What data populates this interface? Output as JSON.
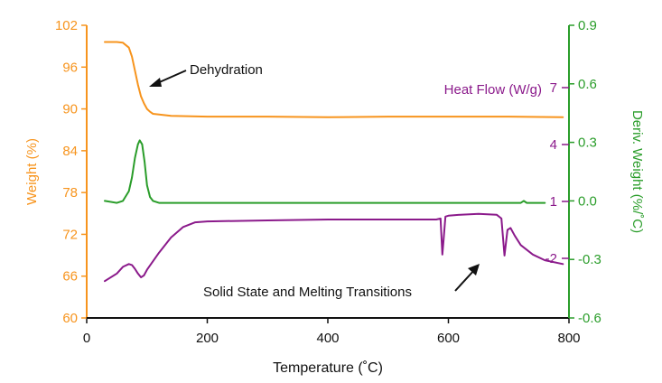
{
  "chart_data": {
    "type": "line",
    "xlabel": "Temperature (˚C)",
    "xlim": [
      0,
      800
    ],
    "xticks": [
      "0",
      "200",
      "400",
      "600",
      "800"
    ],
    "axes": {
      "left": {
        "label": "Weight (%)",
        "min": 60,
        "max": 102,
        "ticks": [
          "60",
          "66",
          "72",
          "78",
          "84",
          "90",
          "96",
          "102"
        ],
        "color": "#f7941d"
      },
      "right": {
        "label": "Deriv. Weight (%/˚C)",
        "min": -0.6,
        "max": 0.9,
        "ticks": [
          "-0.6",
          "-0.3",
          "0.0",
          "0.3",
          "0.6",
          "0.9"
        ],
        "color": "#2a9d2a"
      },
      "heat_flow": {
        "label": "Heat Flow (W/g)",
        "ticks": [
          "7",
          "4",
          "1",
          "-2"
        ],
        "color": "#8b1a8b"
      }
    },
    "series": [
      {
        "name": "Weight (%)",
        "axis": "left",
        "color": "#f7941d",
        "x": [
          30,
          50,
          60,
          70,
          75,
          80,
          85,
          90,
          95,
          100,
          105,
          110,
          120,
          140,
          200,
          300,
          400,
          500,
          600,
          700,
          790
        ],
        "y": [
          99.6,
          99.6,
          99.5,
          98.8,
          97.5,
          95.5,
          93.5,
          91.8,
          90.8,
          90.0,
          89.6,
          89.3,
          89.2,
          89.0,
          88.9,
          88.9,
          88.8,
          88.9,
          88.9,
          88.9,
          88.8
        ]
      },
      {
        "name": "Deriv. Weight (%/˚C)",
        "axis": "right",
        "color": "#2a9d2a",
        "x": [
          30,
          50,
          60,
          70,
          75,
          80,
          85,
          88,
          92,
          96,
          100,
          105,
          110,
          120,
          200,
          400,
          600,
          700,
          720,
          725,
          730,
          740,
          760
        ],
        "y": [
          0.0,
          -0.01,
          0.0,
          0.05,
          0.12,
          0.22,
          0.29,
          0.31,
          0.29,
          0.2,
          0.08,
          0.02,
          0.0,
          -0.01,
          -0.01,
          -0.01,
          -0.01,
          -0.01,
          -0.01,
          0.0,
          -0.01,
          -0.01,
          -0.01
        ]
      },
      {
        "name": "Heat Flow (W/g)",
        "axis": "heat_flow",
        "color": "#8b1a8b",
        "x": [
          30,
          50,
          60,
          70,
          75,
          80,
          85,
          90,
          95,
          100,
          120,
          140,
          160,
          180,
          200,
          300,
          400,
          500,
          580,
          587,
          590,
          592,
          595,
          600,
          620,
          650,
          680,
          688,
          693,
          698,
          703,
          710,
          720,
          740,
          760,
          790
        ],
        "y": [
          -3.2,
          -2.8,
          -2.45,
          -2.3,
          -2.35,
          -2.55,
          -2.8,
          -3.0,
          -2.9,
          -2.6,
          -1.7,
          -0.9,
          -0.35,
          -0.1,
          -0.05,
          0.0,
          0.05,
          0.05,
          0.05,
          0.1,
          -1.8,
          -1.0,
          0.2,
          0.25,
          0.3,
          0.35,
          0.3,
          0.1,
          -1.85,
          -0.5,
          -0.4,
          -0.8,
          -1.3,
          -1.8,
          -2.1,
          -2.3
        ]
      }
    ],
    "annotations": [
      {
        "text": "Dehydration",
        "points_to": {
          "x": 105,
          "y": 94.5,
          "axis": "left"
        }
      },
      {
        "text": "Solid State and Melting Transitions",
        "points_to": {
          "x": 650,
          "y": 65.0,
          "axis": "left"
        }
      }
    ]
  }
}
